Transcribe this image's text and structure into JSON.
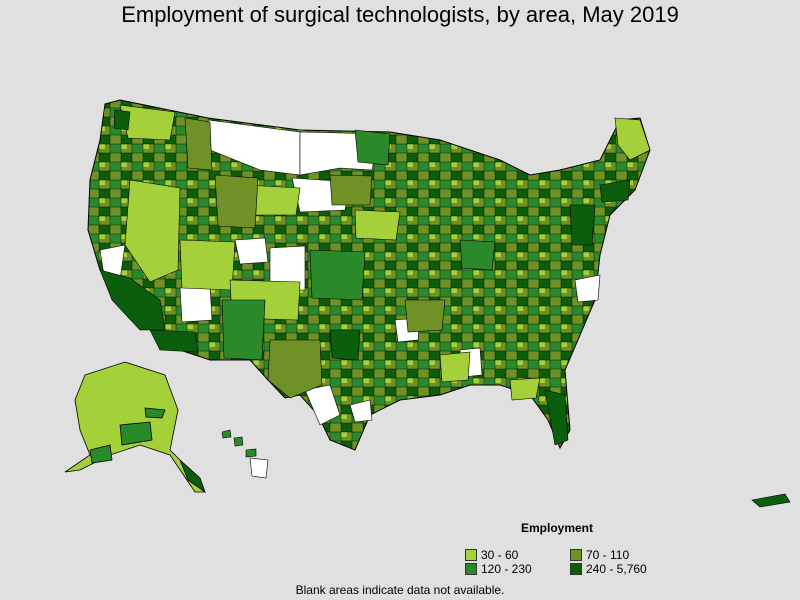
{
  "title": "Employment of surgical technologists, by area, May 2019",
  "legend": {
    "title": "Employment",
    "items": [
      {
        "label": "30 - 60",
        "color": "#a4d13a"
      },
      {
        "label": "70 - 110",
        "color": "#6f9126"
      },
      {
        "label": "120 - 230",
        "color": "#2a8a2a"
      },
      {
        "label": "240 - 5,760",
        "color": "#0b5e0b"
      }
    ]
  },
  "note": "Blank areas indicate data not available.",
  "colors": {
    "background": "#e0e0e0",
    "blank": "#ffffff",
    "border": "#000000"
  }
}
